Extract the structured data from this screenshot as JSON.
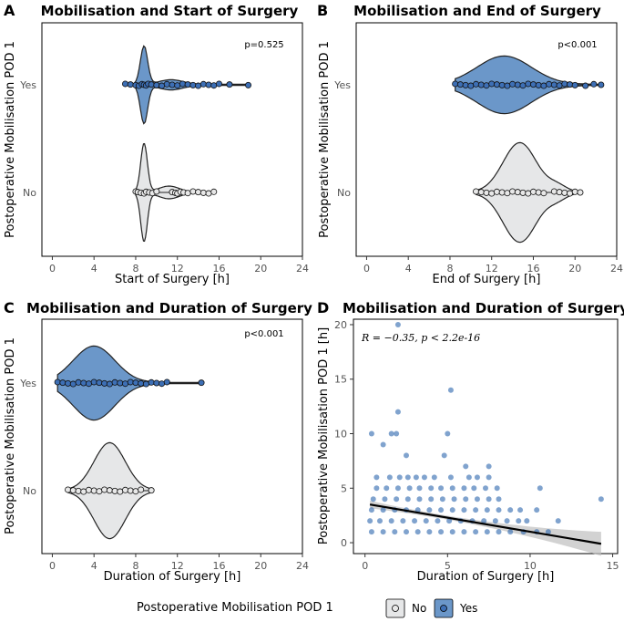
{
  "colors": {
    "yes": "#6b97c9",
    "no": "#e6e7e8",
    "yes_point": "#3d6fb5",
    "no_point": "#e8e8e8",
    "scatter": "#2c66ae",
    "line": "#000000",
    "band": "#bfbfbf"
  },
  "legend": {
    "title": "Postoperative Mobilisation POD 1",
    "items": [
      {
        "label": "No",
        "color": "#e6e7e8"
      },
      {
        "label": "Yes",
        "color": "#6b97c9"
      }
    ]
  },
  "chart_data": [
    {
      "panel": "A",
      "type": "violin",
      "title": "Mobilisation and Start of Surgery",
      "xlabel": "Start of Surgery [h]",
      "ylabel": "Postoperative Mobilisation POD 1",
      "categories": [
        "No",
        "Yes"
      ],
      "xlim": [
        -1,
        24
      ],
      "xticks": [
        "0",
        "4",
        "8",
        "12",
        "16",
        "20",
        "24"
      ],
      "annotation": "p=0.525",
      "series": [
        {
          "name": "No",
          "points": [
            8,
            8.2,
            8.5,
            8.8,
            9,
            9.3,
            9.6,
            10,
            11.5,
            11.8,
            12,
            12.3,
            12.6,
            13,
            13.5,
            14,
            14.5,
            15,
            15.5
          ]
        },
        {
          "name": "Yes",
          "points": [
            7,
            7.5,
            8,
            8.3,
            8.6,
            8.8,
            9,
            9.2,
            9.5,
            10,
            10.5,
            11,
            11.5,
            12,
            12.5,
            13,
            13.5,
            14,
            14.5,
            15,
            15.5,
            16,
            17,
            18.8
          ]
        }
      ]
    },
    {
      "panel": "B",
      "type": "violin",
      "title": "Mobilisation and End of Surgery",
      "xlabel": "End of Surgery [h]",
      "ylabel": "Postoperative Mobilisation POD 1",
      "categories": [
        "No",
        "Yes"
      ],
      "xlim": [
        -1,
        24
      ],
      "xticks": [
        "0",
        "4",
        "8",
        "12",
        "16",
        "20",
        "24"
      ],
      "annotation": "p<0.001",
      "series": [
        {
          "name": "No",
          "points": [
            10.5,
            11,
            11.5,
            12,
            12.5,
            13,
            13.5,
            14,
            14.5,
            15,
            15.5,
            16,
            16.5,
            17,
            18,
            18.5,
            19,
            19.5,
            20,
            20.5
          ]
        },
        {
          "name": "Yes",
          "points": [
            8.5,
            9,
            9.5,
            10,
            10.5,
            11,
            11.5,
            12,
            12.5,
            13,
            13.5,
            14,
            14.5,
            15,
            15.5,
            16,
            16.5,
            17,
            17.5,
            18,
            18.5,
            19,
            19.5,
            20,
            21,
            21.8,
            22.5
          ]
        }
      ]
    },
    {
      "panel": "C",
      "type": "violin",
      "title": "Mobilisation and Duration of Surgery",
      "xlabel": "Duration of Surgery [h]",
      "ylabel": "Postoperative Mobilisation POD 1",
      "categories": [
        "No",
        "Yes"
      ],
      "xlim": [
        -1,
        24
      ],
      "xticks": [
        "0",
        "4",
        "8",
        "12",
        "16",
        "20",
        "24"
      ],
      "annotation": "p<0.001",
      "series": [
        {
          "name": "No",
          "points": [
            1.5,
            2,
            2.5,
            3,
            3.5,
            4,
            4.5,
            5,
            5.5,
            6,
            6.5,
            7,
            7.5,
            8,
            8.5,
            9.5
          ]
        },
        {
          "name": "Yes",
          "points": [
            0.5,
            1,
            1.5,
            2,
            2.5,
            3,
            3.5,
            4,
            4.5,
            5,
            5.5,
            6,
            6.5,
            7,
            7.5,
            8,
            8.5,
            9,
            9.5,
            10,
            10.5,
            11,
            14.3
          ]
        }
      ]
    },
    {
      "panel": "D",
      "type": "scatter",
      "title": "Mobilisation and Duration of Surgery",
      "xlabel": "Duration of Surgery [h]",
      "ylabel": "Postoperative Mobilisation POD 1 [h]",
      "xlim": [
        -0.7,
        15.3
      ],
      "ylim": [
        -1,
        20.5
      ],
      "xticks": [
        0,
        5,
        10,
        15
      ],
      "yticks": [
        0,
        5,
        10,
        15,
        20
      ],
      "annotation": "R = −0.35, p < 2.2e-16",
      "regression": {
        "x": [
          0.3,
          14.3
        ],
        "y": [
          3.5,
          -0.1
        ]
      },
      "points": [
        [
          2,
          20
        ],
        [
          5.2,
          14
        ],
        [
          2,
          12
        ],
        [
          0.4,
          10
        ],
        [
          1.6,
          10
        ],
        [
          1.9,
          10
        ],
        [
          5,
          10
        ],
        [
          1.1,
          9
        ],
        [
          2.5,
          8
        ],
        [
          4.8,
          8
        ],
        [
          7.5,
          7
        ],
        [
          6.1,
          7
        ],
        [
          0.7,
          6
        ],
        [
          1.5,
          6
        ],
        [
          2.1,
          6
        ],
        [
          2.6,
          6
        ],
        [
          3.1,
          6
        ],
        [
          3.6,
          6
        ],
        [
          4.2,
          6
        ],
        [
          5.2,
          6
        ],
        [
          6.3,
          6
        ],
        [
          6.8,
          6
        ],
        [
          7.5,
          6
        ],
        [
          0.7,
          5
        ],
        [
          1.3,
          5
        ],
        [
          2.0,
          5
        ],
        [
          2.7,
          5
        ],
        [
          3.3,
          5
        ],
        [
          4.0,
          5
        ],
        [
          4.6,
          5
        ],
        [
          5.3,
          5
        ],
        [
          6.0,
          5
        ],
        [
          6.6,
          5
        ],
        [
          7.3,
          5
        ],
        [
          8.0,
          5
        ],
        [
          10.6,
          5
        ],
        [
          0.5,
          4
        ],
        [
          1.2,
          4
        ],
        [
          1.9,
          4
        ],
        [
          2.6,
          4
        ],
        [
          3.3,
          4
        ],
        [
          4.0,
          4
        ],
        [
          4.7,
          4
        ],
        [
          5.4,
          4
        ],
        [
          6.1,
          4
        ],
        [
          6.8,
          4
        ],
        [
          7.5,
          4
        ],
        [
          8.1,
          4
        ],
        [
          14.3,
          4
        ],
        [
          0.4,
          3
        ],
        [
          1.1,
          3
        ],
        [
          1.8,
          3
        ],
        [
          2.5,
          3
        ],
        [
          3.2,
          3
        ],
        [
          3.9,
          3
        ],
        [
          4.6,
          3
        ],
        [
          5.3,
          3
        ],
        [
          6.0,
          3
        ],
        [
          6.7,
          3
        ],
        [
          7.4,
          3
        ],
        [
          8.1,
          3
        ],
        [
          8.8,
          3
        ],
        [
          9.4,
          3
        ],
        [
          10.4,
          3
        ],
        [
          0.3,
          2
        ],
        [
          0.9,
          2
        ],
        [
          1.6,
          2
        ],
        [
          2.3,
          2
        ],
        [
          3.0,
          2
        ],
        [
          3.7,
          2
        ],
        [
          4.4,
          2
        ],
        [
          5.1,
          2
        ],
        [
          5.8,
          2
        ],
        [
          6.5,
          2
        ],
        [
          7.2,
          2
        ],
        [
          7.9,
          2
        ],
        [
          8.6,
          2
        ],
        [
          9.3,
          2
        ],
        [
          9.8,
          2
        ],
        [
          11.7,
          2
        ],
        [
          0.4,
          1
        ],
        [
          1.1,
          1
        ],
        [
          1.8,
          1
        ],
        [
          2.5,
          1
        ],
        [
          3.2,
          1
        ],
        [
          3.9,
          1
        ],
        [
          4.6,
          1
        ],
        [
          5.3,
          1
        ],
        [
          6.0,
          1
        ],
        [
          6.7,
          1
        ],
        [
          7.4,
          1
        ],
        [
          8.1,
          1
        ],
        [
          8.8,
          1
        ],
        [
          9.6,
          1
        ],
        [
          10.4,
          1
        ],
        [
          11.1,
          1
        ]
      ]
    }
  ]
}
